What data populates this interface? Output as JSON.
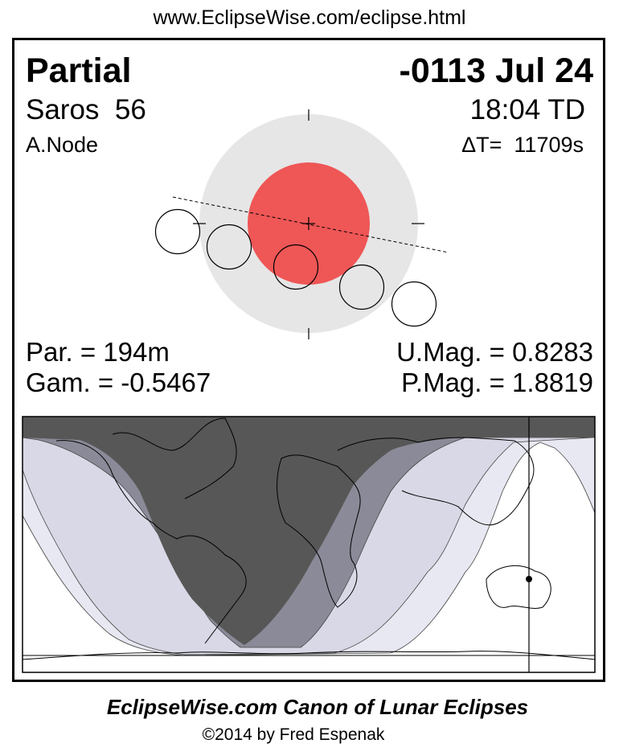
{
  "header": {
    "url": "www.EclipseWise.com/eclipse.html"
  },
  "eclipse": {
    "type": "Partial",
    "date": "-0113 Jul 24",
    "saros": "Saros  56",
    "time": "18:04 TD",
    "node": "A.Node",
    "delta_t": "ΔT=  11709s",
    "partial_duration": "Par. = 194m",
    "gamma": "Gam. = -0.5467",
    "umbral_magnitude": "U.Mag. = 0.8283",
    "penumbral_magnitude": "P.Mag. = 1.8819"
  },
  "colors": {
    "penumbra": "#e6e6e6",
    "umbra": "#ef5656",
    "map_night": "#575757",
    "map_umbral_band": "#8a8a98",
    "map_penumbral_band": "#d8d8e6",
    "map_outer_band": "#e8e8f2"
  },
  "footer": {
    "title": "EclipseWise.com Canon of Lunar Eclipses",
    "copyright": "©2014 by Fred Espenak"
  }
}
